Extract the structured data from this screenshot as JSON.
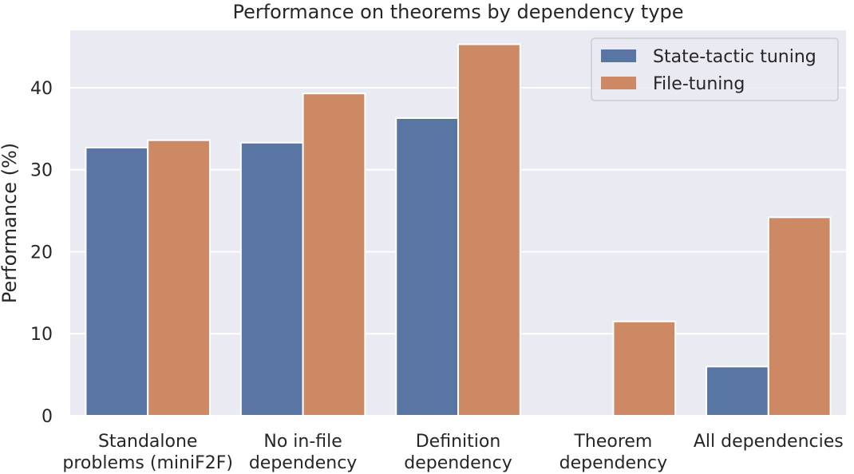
{
  "chart_data": {
    "type": "bar",
    "title": "Performance on theorems by dependency type",
    "xlabel": "",
    "ylabel": "Performance (%)",
    "ylim": [
      0,
      47
    ],
    "yticks": [
      0,
      10,
      20,
      30,
      40
    ],
    "grid": true,
    "legend_position": "top-right",
    "categories": [
      [
        "Standalone",
        "problems (miniF2F)"
      ],
      [
        "No in-file",
        "dependency"
      ],
      [
        "Definition",
        "dependency"
      ],
      [
        "Theorem",
        "dependency"
      ],
      [
        "All dependencies"
      ]
    ],
    "series": [
      {
        "name": "State-tactic tuning",
        "color": "#5975a4",
        "values": [
          32.7,
          33.3,
          36.3,
          0,
          6.0
        ]
      },
      {
        "name": "File-tuning",
        "color": "#cc8963",
        "values": [
          33.6,
          39.3,
          45.3,
          11.5,
          24.2
        ]
      }
    ],
    "colors": {
      "plot_background": "#eaeaf2",
      "grid": "#ffffff"
    }
  }
}
